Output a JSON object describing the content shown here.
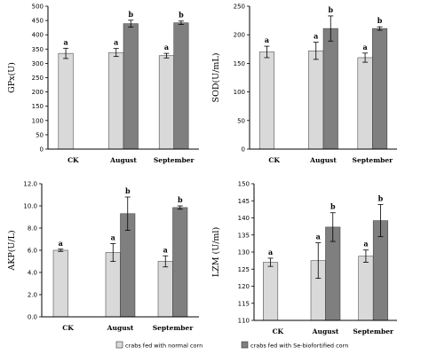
{
  "chart_data": [
    {
      "type": "bar",
      "ylabel": "GPx(U)",
      "ylim": [
        0,
        500
      ],
      "ytick_step": 50,
      "yticks": [
        "0",
        "50",
        "100",
        "150",
        "200",
        "250",
        "300",
        "350",
        "400",
        "450",
        "500"
      ],
      "categories": [
        "CK",
        "August",
        "September"
      ],
      "series": [
        {
          "values": [
            335,
            338,
            327
          ],
          "errors": [
            18,
            14,
            8
          ],
          "labels": [
            "a",
            "a",
            "a"
          ]
        },
        {
          "values": [
            null,
            439,
            442
          ],
          "errors": [
            null,
            12,
            6
          ],
          "labels": [
            null,
            "b",
            "b"
          ]
        }
      ]
    },
    {
      "type": "bar",
      "ylabel": "SOD(U/mL)",
      "ylim": [
        0,
        250
      ],
      "ytick_step": 50,
      "yticks": [
        "0",
        "50",
        "100",
        "150",
        "200",
        "250"
      ],
      "categories": [
        "CK",
        "August",
        "September"
      ],
      "series": [
        {
          "values": [
            170,
            172,
            160
          ],
          "errors": [
            10,
            15,
            8
          ],
          "labels": [
            "a",
            "a",
            "a"
          ]
        },
        {
          "values": [
            null,
            211,
            211
          ],
          "errors": [
            null,
            22,
            3
          ],
          "labels": [
            null,
            "b",
            "b"
          ]
        }
      ]
    },
    {
      "type": "bar",
      "ylabel": "AKP(U/L)",
      "ylim": [
        0,
        12
      ],
      "ytick_step": 2,
      "yticks": [
        "0.0",
        "2.0",
        "4.0",
        "6.0",
        "8.0",
        "10.0",
        "12.0"
      ],
      "categories": [
        "CK",
        "August",
        "September"
      ],
      "series": [
        {
          "values": [
            6.0,
            5.8,
            5.0
          ],
          "errors": [
            0.1,
            0.8,
            0.5
          ],
          "labels": [
            "a",
            "a",
            "a"
          ]
        },
        {
          "values": [
            null,
            9.3,
            9.85
          ],
          "errors": [
            null,
            1.5,
            0.15
          ],
          "labels": [
            null,
            "b",
            "b"
          ]
        }
      ]
    },
    {
      "type": "bar",
      "ylabel": "LZM (U/ml)",
      "ylim": [
        110,
        150
      ],
      "ytick_step": 5,
      "yticks": [
        "110",
        "115",
        "120",
        "125",
        "130",
        "135",
        "140",
        "145",
        "150"
      ],
      "categories": [
        "CK",
        "August",
        "September"
      ],
      "series": [
        {
          "values": [
            127,
            127.5,
            128.8
          ],
          "errors": [
            1.2,
            5.2,
            1.8
          ],
          "labels": [
            "a",
            "a",
            "a"
          ]
        },
        {
          "values": [
            null,
            137.3,
            139.2
          ],
          "errors": [
            null,
            4.2,
            4.7
          ],
          "labels": [
            null,
            "b",
            "b"
          ]
        }
      ]
    }
  ],
  "legend": {
    "placement": "bottom",
    "items": [
      {
        "label": "crabs fed with normal corn",
        "color": "#d9d9d9"
      },
      {
        "label": "crabs fed with Se-biofortified corn",
        "color": "#7f7f7f"
      }
    ]
  },
  "colors": {
    "normal": "#d9d9d9",
    "se": "#7f7f7f",
    "axis": "#000000"
  }
}
